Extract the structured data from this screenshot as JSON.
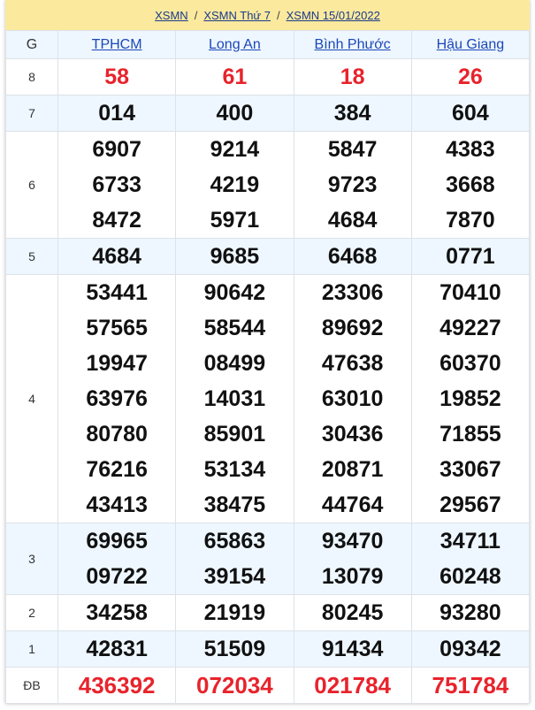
{
  "breadcrumb": [
    "XSMN",
    "XSMN Thứ 7",
    "XSMN 15/01/2022"
  ],
  "breadcrumb_separator": "/",
  "table": {
    "prize_header": "G",
    "provinces": [
      "TPHCM",
      "Long An",
      "Bình Phước",
      "Hậu Giang"
    ],
    "rows": [
      {
        "prize": "8",
        "values": [
          [
            "58"
          ],
          [
            "61"
          ],
          [
            "18"
          ],
          [
            "26"
          ]
        ]
      },
      {
        "prize": "7",
        "values": [
          [
            "014"
          ],
          [
            "400"
          ],
          [
            "384"
          ],
          [
            "604"
          ]
        ]
      },
      {
        "prize": "6",
        "values": [
          [
            "6907",
            "6733",
            "8472"
          ],
          [
            "9214",
            "4219",
            "5971"
          ],
          [
            "5847",
            "9723",
            "4684"
          ],
          [
            "4383",
            "3668",
            "7870"
          ]
        ]
      },
      {
        "prize": "5",
        "values": [
          [
            "4684"
          ],
          [
            "9685"
          ],
          [
            "6468"
          ],
          [
            "0771"
          ]
        ]
      },
      {
        "prize": "4",
        "values": [
          [
            "53441",
            "57565",
            "19947",
            "63976",
            "80780",
            "76216",
            "43413"
          ],
          [
            "90642",
            "58544",
            "08499",
            "14031",
            "85901",
            "53134",
            "38475"
          ],
          [
            "23306",
            "89692",
            "47638",
            "63010",
            "30436",
            "20871",
            "44764"
          ],
          [
            "70410",
            "49227",
            "60370",
            "19852",
            "71855",
            "33067",
            "29567"
          ]
        ]
      },
      {
        "prize": "3",
        "values": [
          [
            "69965",
            "09722"
          ],
          [
            "65863",
            "39154"
          ],
          [
            "93470",
            "13079"
          ],
          [
            "34711",
            "60248"
          ]
        ]
      },
      {
        "prize": "2",
        "values": [
          [
            "34258"
          ],
          [
            "21919"
          ],
          [
            "80245"
          ],
          [
            "93280"
          ]
        ]
      },
      {
        "prize": "1",
        "values": [
          [
            "42831"
          ],
          [
            "51509"
          ],
          [
            "91434"
          ],
          [
            "09342"
          ]
        ]
      },
      {
        "prize": "ĐB",
        "values": [
          [
            "436392"
          ],
          [
            "072034"
          ],
          [
            "021784"
          ],
          [
            "751784"
          ]
        ]
      }
    ]
  },
  "colors": {
    "header_bg": "#fbe99d",
    "alt_row_bg": "#eef7ff",
    "highlight_red": "#e8232b",
    "link_blue": "#1a47b8"
  }
}
